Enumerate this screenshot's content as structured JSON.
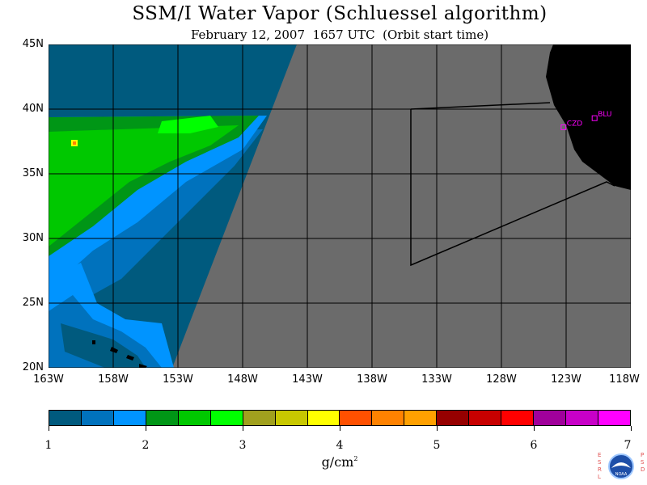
{
  "title": "SSM/I Water Vapor (Schluessel algorithm)",
  "subtitle": "February 12, 2007  1657 UTC  (Orbit start time)",
  "map": {
    "lat_labels": [
      "45N",
      "40N",
      "35N",
      "30N",
      "25N",
      "20N"
    ],
    "lon_labels": [
      "163W",
      "158W",
      "153W",
      "148W",
      "143W",
      "138W",
      "133W",
      "128W",
      "123W",
      "118W"
    ],
    "lat_range": [
      20,
      45
    ],
    "lon_range": [
      -163,
      -118
    ],
    "grid": true,
    "stations": [
      {
        "id": "CZD",
        "lat": 38.6,
        "lon": -123.2
      },
      {
        "id": "BLU",
        "lat": 39.3,
        "lon": -120.8
      }
    ],
    "colors": {
      "no_data": "#6b6b6b",
      "land": "#000000",
      "grid": "#000000",
      "station": "#ff00ff"
    }
  },
  "colorbar": {
    "ticks": [
      "1",
      "2",
      "3",
      "4",
      "5",
      "6",
      "7"
    ],
    "colors": [
      "#005a7e",
      "#0072bd",
      "#0094ff",
      "#009616",
      "#00c800",
      "#00ff00",
      "#a0a01e",
      "#c8c800",
      "#ffff00",
      "#ff5000",
      "#ff8200",
      "#ffa000",
      "#960000",
      "#c80000",
      "#ff0000",
      "#a0009b",
      "#c800c8",
      "#ff00ff"
    ],
    "units_base": "g/cm",
    "units_exp": "2"
  },
  "logo": {
    "left_letters": "ESRL",
    "right_letters": "PSD",
    "badge_text": "NOAA"
  }
}
